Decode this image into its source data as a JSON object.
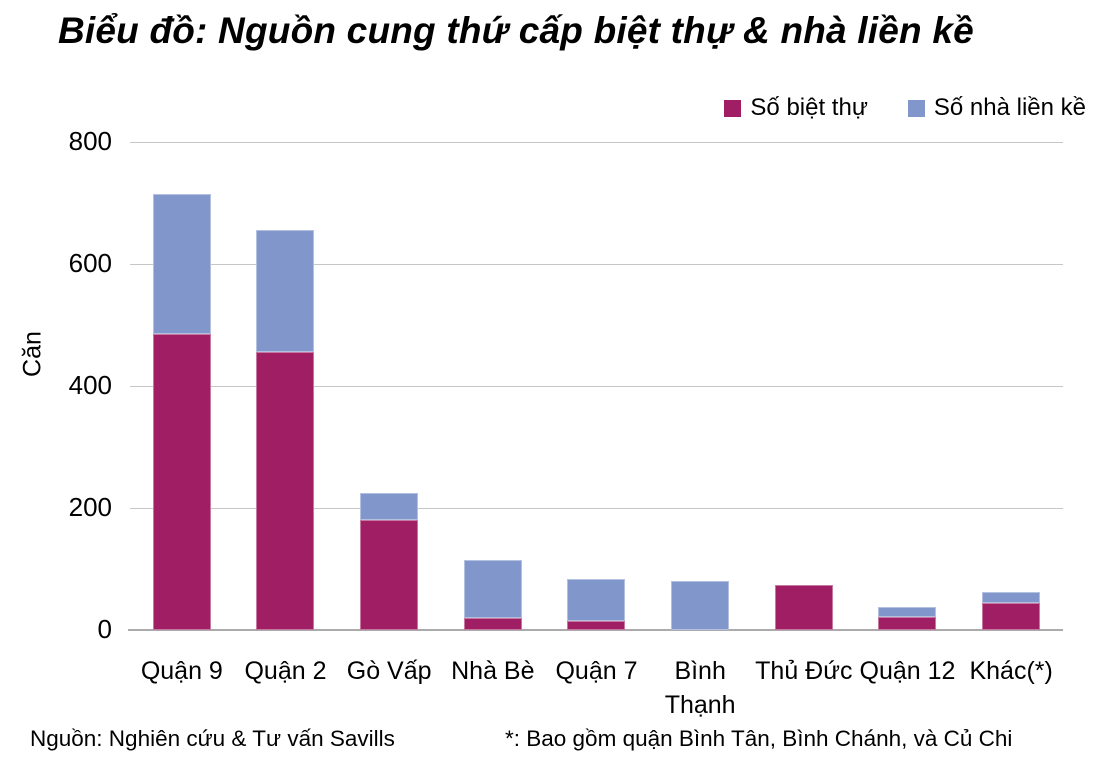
{
  "title": "Biểu đồ: Nguồn cung thứ cấp biệt thự & nhà liền kề",
  "chart_data": {
    "type": "bar",
    "stacked": true,
    "title": "Biểu đồ: Nguồn cung thứ cấp biệt thự & nhà liền kề",
    "ylabel": "Căn",
    "xlabel": "",
    "ylim": [
      0,
      800
    ],
    "yticks": [
      0,
      200,
      400,
      600,
      800
    ],
    "grid": true,
    "legend_position": "top-right",
    "categories": [
      "Quận 9",
      "Quận 2",
      "Gò Vấp",
      "Nhà Bè",
      "Quận 7",
      "Bình Thạnh",
      "Thủ Đức",
      "Quận 12",
      "Khác(*)"
    ],
    "series": [
      {
        "name": "Số biệt thự",
        "color": "#a01e63",
        "values": [
          485,
          455,
          180,
          20,
          15,
          0,
          74,
          22,
          44
        ]
      },
      {
        "name": "Số nhà liền kề",
        "color": "#8197cb",
        "values": [
          230,
          200,
          45,
          95,
          68,
          80,
          0,
          16,
          18
        ]
      }
    ]
  },
  "footer": {
    "source": "Nguồn: Nghiên cứu & Tư vấn Savills",
    "note": "*: Bao gồm quận Bình Tân, Bình Chánh, và Củ Chi"
  },
  "colors": {
    "biet_thu": "#a01e63",
    "nha_lien_ke": "#8197cb",
    "gridline": "#c6c6c6",
    "axis_line": "#ababab",
    "text": "#000000",
    "background": "#ffffff"
  }
}
